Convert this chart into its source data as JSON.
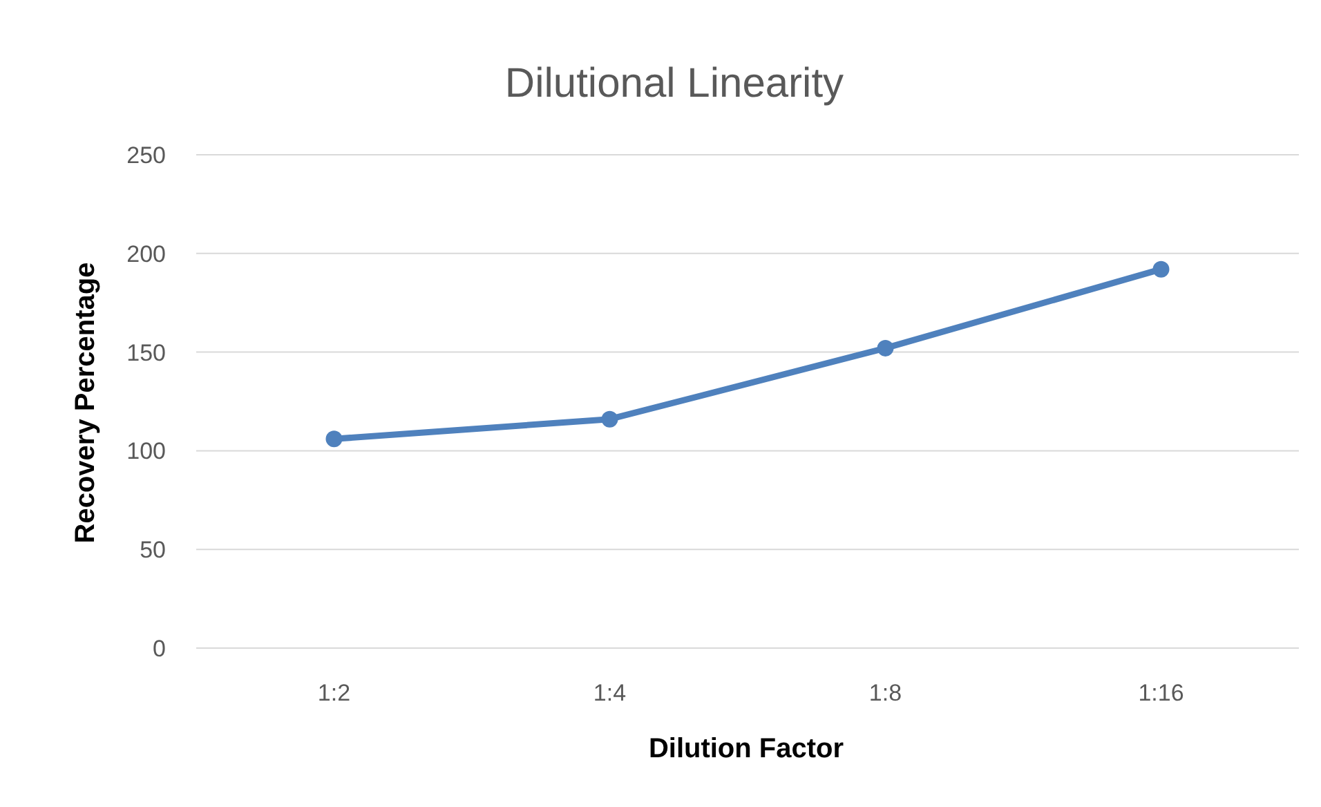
{
  "chart_data": {
    "type": "line",
    "title": "Dilutional Linearity",
    "xlabel": "Dilution Factor",
    "ylabel": "Recovery Percentage",
    "categories": [
      "1:2",
      "1:4",
      "1:8",
      "1:16"
    ],
    "series": [
      {
        "color": "#4f81bd",
        "values": [
          106,
          116,
          152,
          192
        ]
      }
    ],
    "ylim": [
      0,
      250
    ],
    "yticks": [
      0,
      50,
      100,
      150,
      200,
      250
    ],
    "grid": "y",
    "marker": "circle"
  }
}
